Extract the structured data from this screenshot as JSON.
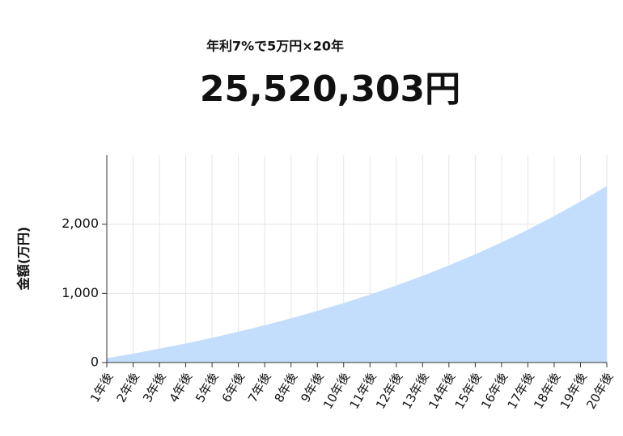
{
  "chart_data": {
    "type": "area",
    "subtitle": "年利7%で5万円×20年",
    "title": "25,520,303円",
    "y_label": "金額(万円)",
    "categories": [
      "1年後",
      "2年後",
      "3年後",
      "4年後",
      "5年後",
      "6年後",
      "7年後",
      "8年後",
      "9年後",
      "10年後",
      "11年後",
      "12年後",
      "13年後",
      "14年後",
      "15年後",
      "16年後",
      "17年後",
      "18年後",
      "19年後",
      "20年後"
    ],
    "values": [
      62.25,
      128.86,
      200.14,
      276.39,
      357.99,
      445.3,
      538.72,
      638.69,
      745.65,
      860.1,
      982.56,
      1113.59,
      1253.79,
      1403.81,
      1564.33,
      1736.08,
      1919.86,
      2116.5,
      2326.91,
      2552.03
    ],
    "color": "#c3defc",
    "ylim": [
      0,
      3000
    ],
    "yticks": [
      0,
      {
        "value": 1000,
        "label": "1,000"
      },
      {
        "value": 2000,
        "label": "2,000"
      }
    ],
    "grid": true
  }
}
